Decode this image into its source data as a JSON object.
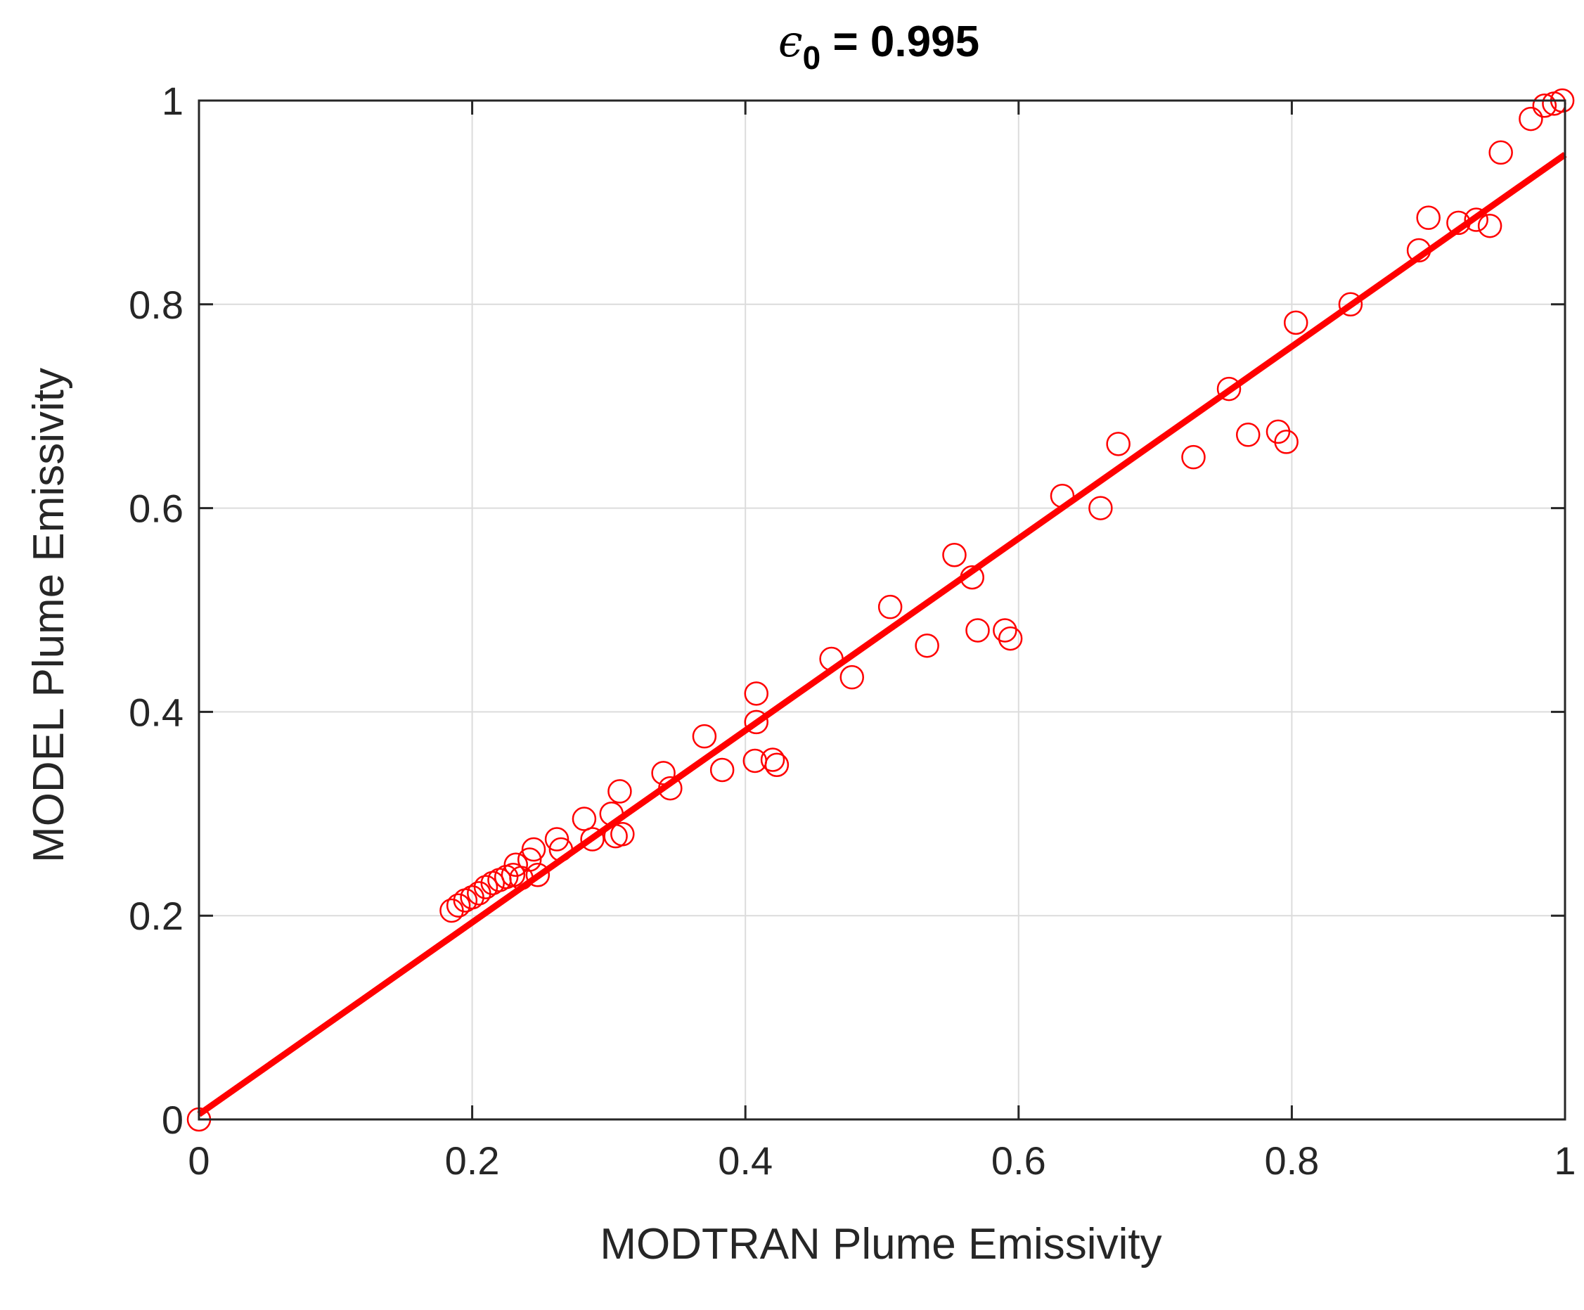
{
  "chart_data": {
    "type": "scatter",
    "title": {
      "symbol": "ϵ",
      "subscript": "0",
      "rest": " = 0.995"
    },
    "xlabel": "MODTRAN Plume Emissivity",
    "ylabel": "MODEL Plume Emissivity",
    "xlim": [
      0,
      1
    ],
    "ylim": [
      0,
      1
    ],
    "xticks": [
      0,
      0.2,
      0.4,
      0.6,
      0.8,
      1
    ],
    "yticks": [
      0,
      0.2,
      0.4,
      0.6,
      0.8,
      1
    ],
    "xtick_labels": [
      "0",
      "0.2",
      "0.4",
      "0.6",
      "0.8",
      "1"
    ],
    "ytick_labels": [
      "0",
      "0.2",
      "0.4",
      "0.6",
      "0.8",
      "1"
    ],
    "grid": true,
    "colors": {
      "marker": "#ff0000",
      "fit_line": "#ff0000",
      "grid": "#dcdcdc",
      "axes": "#262626"
    },
    "fit_line": {
      "x": [
        0,
        1
      ],
      "y": [
        0.005,
        0.947
      ]
    },
    "points": [
      [
        0.0,
        0.0
      ],
      [
        0.185,
        0.205
      ],
      [
        0.19,
        0.21
      ],
      [
        0.195,
        0.215
      ],
      [
        0.2,
        0.218
      ],
      [
        0.205,
        0.222
      ],
      [
        0.21,
        0.228
      ],
      [
        0.215,
        0.232
      ],
      [
        0.22,
        0.235
      ],
      [
        0.225,
        0.238
      ],
      [
        0.23,
        0.24
      ],
      [
        0.232,
        0.25
      ],
      [
        0.236,
        0.237
      ],
      [
        0.242,
        0.255
      ],
      [
        0.245,
        0.265
      ],
      [
        0.248,
        0.24
      ],
      [
        0.265,
        0.265
      ],
      [
        0.262,
        0.275
      ],
      [
        0.282,
        0.295
      ],
      [
        0.288,
        0.275
      ],
      [
        0.302,
        0.3
      ],
      [
        0.305,
        0.278
      ],
      [
        0.308,
        0.322
      ],
      [
        0.31,
        0.28
      ],
      [
        0.34,
        0.34
      ],
      [
        0.345,
        0.325
      ],
      [
        0.37,
        0.376
      ],
      [
        0.383,
        0.343
      ],
      [
        0.407,
        0.352
      ],
      [
        0.408,
        0.39
      ],
      [
        0.408,
        0.418
      ],
      [
        0.42,
        0.353
      ],
      [
        0.423,
        0.348
      ],
      [
        0.463,
        0.452
      ],
      [
        0.478,
        0.434
      ],
      [
        0.506,
        0.503
      ],
      [
        0.533,
        0.465
      ],
      [
        0.553,
        0.554
      ],
      [
        0.566,
        0.532
      ],
      [
        0.57,
        0.48
      ],
      [
        0.59,
        0.48
      ],
      [
        0.594,
        0.472
      ],
      [
        0.632,
        0.612
      ],
      [
        0.66,
        0.6
      ],
      [
        0.673,
        0.663
      ],
      [
        0.728,
        0.65
      ],
      [
        0.754,
        0.717
      ],
      [
        0.768,
        0.672
      ],
      [
        0.79,
        0.675
      ],
      [
        0.796,
        0.665
      ],
      [
        0.803,
        0.782
      ],
      [
        0.843,
        0.8
      ],
      [
        0.893,
        0.853
      ],
      [
        0.9,
        0.885
      ],
      [
        0.922,
        0.88
      ],
      [
        0.935,
        0.883
      ],
      [
        0.945,
        0.877
      ],
      [
        0.953,
        0.949
      ],
      [
        0.975,
        0.982
      ],
      [
        0.985,
        0.995
      ],
      [
        0.992,
        0.997
      ],
      [
        0.998,
        1.0
      ]
    ]
  }
}
